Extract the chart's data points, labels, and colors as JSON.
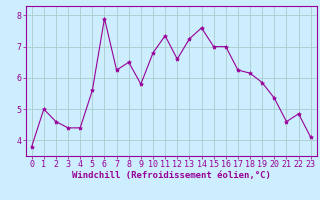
{
  "x": [
    0,
    1,
    2,
    3,
    4,
    5,
    6,
    7,
    8,
    9,
    10,
    11,
    12,
    13,
    14,
    15,
    16,
    17,
    18,
    19,
    20,
    21,
    22,
    23
  ],
  "y": [
    3.8,
    5.0,
    4.6,
    4.4,
    4.4,
    5.6,
    7.9,
    6.25,
    6.5,
    5.8,
    6.8,
    7.35,
    6.6,
    7.25,
    7.6,
    7.0,
    7.0,
    6.25,
    6.15,
    5.85,
    5.35,
    4.6,
    4.85,
    4.1
  ],
  "line_color": "#990099",
  "marker": "*",
  "marker_size": 3,
  "bg_color": "#cceeff",
  "grid_color": "#aacccc",
  "xlabel": "Windchill (Refroidissement éolien,°C)",
  "xlabel_color": "#990099",
  "xlabel_fontsize": 6.5,
  "tick_color": "#990099",
  "tick_fontsize": 6,
  "yticks": [
    4,
    5,
    6,
    7,
    8
  ],
  "ylim": [
    3.5,
    8.3
  ],
  "xlim": [
    -0.5,
    23.5
  ]
}
